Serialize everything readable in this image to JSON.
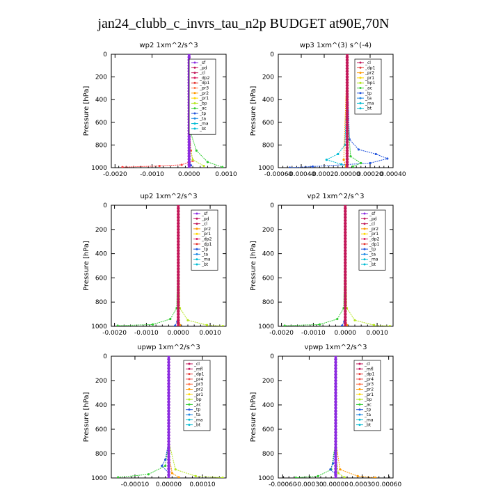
{
  "figure_title": "jan24_clubb_c_invrs_tau_n2p  BUDGET at90E,70N",
  "chart_data": [
    {
      "type": "line",
      "title": "wp2   1xm^2/s^3",
      "ylabel": "Pressure [hPa]",
      "xlim": [
        -0.0021,
        0.001
      ],
      "xticks": [
        -0.002,
        -0.001,
        0.0,
        0.001
      ],
      "xticklabels": [
        "-0.0020",
        "-0.0010",
        "0.0000",
        "0.0010"
      ],
      "ylim": [
        1000,
        0
      ],
      "yticks": [
        0,
        200,
        400,
        600,
        800,
        1000
      ],
      "legend": [
        "_sf",
        "_pd",
        "_cl",
        "_dp2",
        "_dp1",
        "_pr3",
        "_pr2",
        "_pr1",
        "_bp",
        "_ac",
        "_tp",
        "_ta",
        "_ma",
        "_bt"
      ],
      "series": [
        {
          "name": "_pr1",
          "color": "#ff3b3b",
          "points": [
            [
              0,
              100
            ],
            [
              2e-05,
              700
            ],
            [
              5e-05,
              850
            ],
            [
              0.0001,
              940
            ],
            [
              -0.0002,
              975
            ],
            [
              -0.0008,
              985
            ],
            [
              -0.0018,
              995
            ]
          ]
        },
        {
          "name": "_ac",
          "color": "#33cc33",
          "points": [
            [
              0,
              100
            ],
            [
              5e-05,
              700
            ],
            [
              0.0002,
              850
            ],
            [
              0.0005,
              950
            ],
            [
              0.0009,
              995
            ]
          ]
        },
        {
          "name": "_dp1",
          "color": "#b5e61d",
          "points": [
            [
              0,
              100
            ],
            [
              2e-05,
              800
            ],
            [
              0.0001,
              930
            ],
            [
              0.0004,
              985
            ]
          ]
        },
        {
          "name": "_tp",
          "color": "#2255dd",
          "points": [
            [
              0,
              100
            ],
            [
              0,
              900
            ],
            [
              5e-05,
              980
            ]
          ]
        },
        {
          "name": "_cl",
          "color": "#c2185b",
          "points": [
            [
              0,
              0
            ],
            [
              0,
              1000
            ]
          ]
        },
        {
          "name": "_sf",
          "color": "#8a2be2",
          "points": [
            [
              0,
              0
            ],
            [
              0,
              1000
            ]
          ]
        }
      ]
    },
    {
      "type": "line",
      "title": "wp3   1xm^(3) s^(-4)",
      "ylabel": "Pressure [hPa]",
      "xlim": [
        -0.0006,
        0.0004
      ],
      "xticks": [
        -0.0006,
        -0.0004,
        -0.0002,
        0.0,
        0.0002,
        0.0004
      ],
      "xticklabels": [
        "-0.00060",
        "-0.00040",
        "-0.00020",
        "0.00000",
        "0.00020",
        "0.00040"
      ],
      "ylim": [
        1000,
        0
      ],
      "yticks": [
        0,
        200,
        400,
        600,
        800,
        1000
      ],
      "legend": [
        "_cl",
        "_dp1",
        "_pr2",
        "_pr1",
        "_bp1",
        "_ac",
        "_tp",
        "_ta",
        "_ma",
        "_bt"
      ],
      "series": [
        {
          "name": "_tp",
          "color": "#2255dd",
          "points": [
            [
              0,
              100
            ],
            [
              2e-05,
              750
            ],
            [
              0.0001,
              840
            ],
            [
              0.00025,
              880
            ],
            [
              0.00035,
              920
            ],
            [
              0.0002,
              960
            ],
            [
              -0.0003,
              990
            ],
            [
              -0.0005,
              1000
            ]
          ]
        },
        {
          "name": "_ta",
          "color": "#00bcd4",
          "points": [
            [
              0,
              300
            ],
            [
              -2e-05,
              800
            ],
            [
              -8e-05,
              880
            ],
            [
              -0.00018,
              930
            ],
            [
              -5e-05,
              970
            ],
            [
              0,
              990
            ]
          ]
        },
        {
          "name": "_ac",
          "color": "#33cc33",
          "points": [
            [
              0,
              500
            ],
            [
              3e-05,
              900
            ],
            [
              0.00012,
              960
            ],
            [
              5e-05,
              990
            ]
          ]
        },
        {
          "name": "_pr1",
          "color": "#ff3b3b",
          "points": [
            [
              0,
              0
            ],
            [
              0,
              1000
            ]
          ]
        },
        {
          "name": "_pr2",
          "color": "#ff9900",
          "points": [
            [
              0,
              50
            ],
            [
              -3e-05,
              930
            ],
            [
              -1e-05,
              990
            ]
          ]
        },
        {
          "name": "_cl",
          "color": "#c2185b",
          "points": [
            [
              0,
              0
            ],
            [
              0,
              1000
            ]
          ]
        }
      ]
    },
    {
      "type": "line",
      "title": "up2   1xm^2/s^3",
      "ylabel": "Pressure [hPa]",
      "xlim": [
        -0.0021,
        0.0015
      ],
      "xticks": [
        -0.002,
        -0.001,
        0.0,
        0.001
      ],
      "xticklabels": [
        "-0.0020",
        "-0.0010",
        "0.0000",
        "0.0010"
      ],
      "ylim": [
        1000,
        0
      ],
      "yticks": [
        0,
        200,
        400,
        600,
        800,
        1000
      ],
      "legend": [
        "_sf",
        "_pd",
        "_cl",
        "_pr2",
        "_pr1",
        "_dp2",
        "_dp1",
        "_tp",
        "_ta",
        "_ma",
        "_bt"
      ],
      "series": [
        {
          "name": "_dp1",
          "color": "#33cc33",
          "points": [
            [
              0,
              200
            ],
            [
              -5e-05,
              850
            ],
            [
              -0.00025,
              940
            ],
            [
              -0.0008,
              985
            ],
            [
              -0.0019,
              995
            ]
          ]
        },
        {
          "name": "_pr1",
          "color": "#b5e61d",
          "points": [
            [
              0,
              200
            ],
            [
              5e-05,
              850
            ],
            [
              0.0003,
              950
            ],
            [
              0.0009,
              990
            ],
            [
              0.0014,
              998
            ]
          ]
        },
        {
          "name": "_tp",
          "color": "#2255dd",
          "points": [
            [
              0,
              500
            ],
            [
              -3e-05,
              960
            ],
            [
              -0.0001,
              995
            ]
          ]
        },
        {
          "name": "_pr2",
          "color": "#ff9900",
          "points": [
            [
              0,
              0
            ],
            [
              1e-05,
              900
            ],
            [
              5e-05,
              990
            ]
          ]
        },
        {
          "name": "_sf",
          "color": "#ff3b3b",
          "points": [
            [
              0,
              0
            ],
            [
              0,
              1000
            ]
          ]
        },
        {
          "name": "_cl",
          "color": "#c2185b",
          "points": [
            [
              0,
              0
            ],
            [
              0,
              1000
            ]
          ]
        }
      ]
    },
    {
      "type": "line",
      "title": "vp2   1xm^2/s^3",
      "ylabel": "Pressure [hPa]",
      "xlim": [
        -0.0021,
        0.0015
      ],
      "xticks": [
        -0.002,
        -0.001,
        0.0,
        0.001
      ],
      "xticklabels": [
        "-0.0020",
        "-0.0010",
        "0.0000",
        "0.0010"
      ],
      "ylim": [
        1000,
        0
      ],
      "yticks": [
        0,
        200,
        400,
        600,
        800,
        1000
      ],
      "legend": [
        "_sf",
        "_pd",
        "_cl",
        "_pr2",
        "_pr1",
        "_dp2",
        "_dp1",
        "_tp",
        "_ta",
        "_ma",
        "_bt"
      ],
      "series": [
        {
          "name": "_dp1",
          "color": "#33cc33",
          "points": [
            [
              0,
              200
            ],
            [
              -5e-05,
              850
            ],
            [
              -0.00025,
              940
            ],
            [
              -0.0008,
              985
            ],
            [
              -0.0019,
              995
            ]
          ]
        },
        {
          "name": "_pr1",
          "color": "#b5e61d",
          "points": [
            [
              0,
              200
            ],
            [
              5e-05,
              850
            ],
            [
              0.0003,
              950
            ],
            [
              0.0009,
              990
            ],
            [
              0.0014,
              998
            ]
          ]
        },
        {
          "name": "_tp",
          "color": "#2255dd",
          "points": [
            [
              0,
              500
            ],
            [
              -3e-05,
              960
            ],
            [
              -0.0001,
              995
            ]
          ]
        },
        {
          "name": "_pr2",
          "color": "#ff9900",
          "points": [
            [
              0,
              0
            ],
            [
              1e-05,
              900
            ],
            [
              5e-05,
              990
            ]
          ]
        },
        {
          "name": "_sf",
          "color": "#ff3b3b",
          "points": [
            [
              0,
              0
            ],
            [
              0,
              1000
            ]
          ]
        },
        {
          "name": "_cl",
          "color": "#c2185b",
          "points": [
            [
              0,
              0
            ],
            [
              0,
              1000
            ]
          ]
        }
      ]
    },
    {
      "type": "line",
      "title": "upwp   1xm^2/s^3",
      "ylabel": "Pressure [hPa]",
      "xlim": [
        -0.00017,
        0.00017
      ],
      "xticks": [
        -0.0001,
        0.0,
        0.0001
      ],
      "xticklabels": [
        "-0.00010",
        "0.00000",
        "0.00010"
      ],
      "ylim": [
        1000,
        0
      ],
      "yticks": [
        0,
        200,
        400,
        600,
        800,
        1000
      ],
      "legend": [
        "_cl",
        "_mfl",
        "_dp1",
        "_pr4",
        "_pr3",
        "_pr2",
        "_pr1",
        "_bp",
        "_ac",
        "_tp",
        "_ta",
        "_ma",
        "_bt"
      ],
      "series": [
        {
          "name": "_ac",
          "color": "#33cc33",
          "points": [
            [
              0,
              700
            ],
            [
              -1e-05,
              900
            ],
            [
              -6e-05,
              970
            ],
            [
              -0.00015,
              995
            ]
          ]
        },
        {
          "name": "_pr1",
          "color": "#b5e61d",
          "points": [
            [
              0,
              700
            ],
            [
              2e-05,
              930
            ],
            [
              8e-05,
              985
            ],
            [
              0.00016,
              998
            ]
          ]
        },
        {
          "name": "_tp",
          "color": "#2255dd",
          "points": [
            [
              0,
              700
            ],
            [
              -1e-05,
              850
            ],
            [
              -2e-05,
              900
            ],
            [
              0,
              960
            ]
          ]
        },
        {
          "name": "_pr2",
          "color": "#ff9900",
          "points": [
            [
              0,
              800
            ],
            [
              1e-05,
              960
            ],
            [
              3e-05,
              995
            ]
          ]
        },
        {
          "name": "_mfl",
          "color": "#c2185b",
          "points": [
            [
              0,
              0
            ],
            [
              0,
              1000
            ]
          ]
        },
        {
          "name": "_cl",
          "color": "#8a2be2",
          "points": [
            [
              0,
              0
            ],
            [
              0,
              1000
            ]
          ]
        }
      ]
    },
    {
      "type": "line",
      "title": "vpwp   1xm^2/s^3",
      "ylabel": "Pressure [hPa]",
      "xlim": [
        -0.00065,
        0.00065
      ],
      "xticks": [
        -0.0006,
        -0.0003,
        0.0,
        0.0003,
        0.0006
      ],
      "xticklabels": [
        "-0.00060",
        "-0.00030",
        "0.00000",
        "0.00030",
        "0.00060"
      ],
      "ylim": [
        1000,
        0
      ],
      "yticks": [
        0,
        200,
        400,
        600,
        800,
        1000
      ],
      "legend": [
        "_cl",
        "_mfl",
        "_dp1",
        "_pr4",
        "_pr3",
        "_pr2",
        "_pr1",
        "_bp",
        "_ac",
        "_tp",
        "_ta",
        "_ma",
        "_bt"
      ],
      "series": [
        {
          "name": "_ac",
          "color": "#33cc33",
          "points": [
            [
              0,
              700
            ],
            [
              -5e-05,
              930
            ],
            [
              -0.0002,
              985
            ],
            [
              -0.00045,
              998
            ]
          ]
        },
        {
          "name": "_pr1",
          "color": "#ff9900",
          "points": [
            [
              0,
              700
            ],
            [
              5e-05,
              930
            ],
            [
              0.00025,
              985
            ],
            [
              0.00045,
              998
            ]
          ]
        },
        {
          "name": "_tp",
          "color": "#2255dd",
          "points": [
            [
              0,
              700
            ],
            [
              -3e-05,
              880
            ],
            [
              -6e-05,
              930
            ],
            [
              0,
              970
            ]
          ]
        },
        {
          "name": "_pr2",
          "color": "#b5e61d",
          "points": [
            [
              0,
              800
            ],
            [
              3e-05,
              960
            ],
            [
              0.0001,
              995
            ]
          ]
        },
        {
          "name": "_mfl",
          "color": "#c2185b",
          "points": [
            [
              0,
              0
            ],
            [
              0,
              1000
            ]
          ]
        },
        {
          "name": "_cl",
          "color": "#8a2be2",
          "points": [
            [
              0,
              0
            ],
            [
              0,
              1000
            ]
          ]
        }
      ]
    }
  ],
  "legend_colors": {
    "_sf": "#8a2be2",
    "_pd": "#c2185b",
    "_cl": "#c2185b",
    "_mfl": "#c2185b",
    "_dp2": "#d81b60",
    "_dp1": "#e53935",
    "_pr4": "#ef5350",
    "_pr3": "#ff7043",
    "_pr2": "#ff9900",
    "_pr1": "#ffd600",
    "_bp": "#b5e61d",
    "_bp1": "#b5e61d",
    "_ac": "#33cc33",
    "_tp": "#2255dd",
    "_ta": "#1e88e5",
    "_ma": "#00bcd4",
    "_bt": "#00bcd4"
  }
}
